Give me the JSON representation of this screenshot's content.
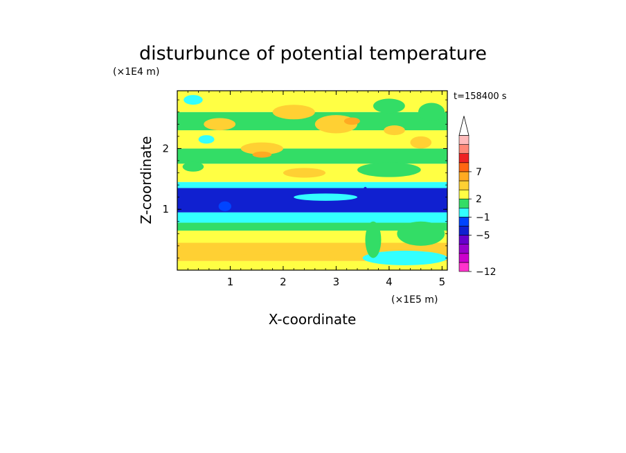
{
  "chart_data": {
    "type": "heatmap",
    "title": "disturbunce of potential temperature",
    "time_label": "t=158400 s",
    "xlabel": "X-coordinate",
    "ylabel": "Z-coordinate",
    "x_unit": "(×1E5 m)",
    "y_unit": "(×1E4 m)",
    "xlim": [
      0,
      5.1
    ],
    "ylim": [
      0,
      2.95
    ],
    "x_ticks": [
      1,
      2,
      3,
      4,
      5
    ],
    "y_ticks": [
      1,
      2
    ],
    "colorbar": {
      "colors": [
        "#ff33cc",
        "#cc00cc",
        "#9900cc",
        "#6600cc",
        "#1020d0",
        "#0044ff",
        "#33ffff",
        "#33dd66",
        "#ffff44",
        "#ffd033",
        "#ffaa22",
        "#ff6611",
        "#ee2222",
        "#ff8877",
        "#ffbbbb"
      ],
      "tick_labels": [
        {
          "label": "-12",
          "boundary": 0
        },
        {
          "label": "-5",
          "boundary": 4
        },
        {
          "label": "-1",
          "boundary": 6
        },
        {
          "label": "2",
          "boundary": 8
        },
        {
          "label": "7",
          "boundary": 11
        }
      ],
      "extend_top": true
    },
    "bands": [
      {
        "z0": 0.0,
        "z1": 0.15,
        "color": "#ffff44"
      },
      {
        "z0": 0.15,
        "z1": 0.45,
        "color": "#ffd033"
      },
      {
        "z0": 0.45,
        "z1": 0.65,
        "color": "#ffff44"
      },
      {
        "z0": 0.65,
        "z1": 0.78,
        "color": "#33dd66"
      },
      {
        "z0": 0.78,
        "z1": 0.95,
        "color": "#33ffff"
      },
      {
        "z0": 0.95,
        "z1": 1.35,
        "color": "#1020d0"
      },
      {
        "z0": 1.35,
        "z1": 1.45,
        "color": "#33ffff"
      },
      {
        "z0": 1.45,
        "z1": 1.75,
        "color": "#ffff44"
      },
      {
        "z0": 1.75,
        "z1": 2.0,
        "color": "#33dd66"
      },
      {
        "z0": 2.0,
        "z1": 2.3,
        "color": "#ffff44"
      },
      {
        "z0": 2.3,
        "z1": 2.6,
        "color": "#33dd66"
      },
      {
        "z0": 2.6,
        "z1": 2.95,
        "color": "#ffff44"
      }
    ],
    "patches": [
      {
        "x": 0.5,
        "z": 0.3,
        "rx": 0.45,
        "rz": 0.12,
        "color": "#ffd033"
      },
      {
        "x": 1.4,
        "z": 0.35,
        "rx": 0.6,
        "rz": 0.1,
        "color": "#ffd033"
      },
      {
        "x": 3.2,
        "z": 0.25,
        "rx": 0.35,
        "rz": 0.08,
        "color": "#ffd033"
      },
      {
        "x": 4.3,
        "z": 0.2,
        "rx": 0.8,
        "rz": 0.12,
        "color": "#33ffff"
      },
      {
        "x": 3.7,
        "z": 0.5,
        "rx": 0.15,
        "rz": 0.3,
        "color": "#33dd66"
      },
      {
        "x": 4.6,
        "z": 0.6,
        "rx": 0.45,
        "rz": 0.2,
        "color": "#33dd66"
      },
      {
        "x": 2.8,
        "z": 1.2,
        "rx": 0.6,
        "rz": 0.06,
        "color": "#33ffff"
      },
      {
        "x": 3.55,
        "z": 1.22,
        "rx": 0.06,
        "rz": 0.15,
        "color": "#1020d0"
      },
      {
        "x": 0.9,
        "z": 1.05,
        "rx": 0.12,
        "rz": 0.08,
        "color": "#0044ff"
      },
      {
        "x": 1.6,
        "z": 2.0,
        "rx": 0.4,
        "rz": 0.1,
        "color": "#ffd033"
      },
      {
        "x": 1.6,
        "z": 1.9,
        "rx": 0.18,
        "rz": 0.05,
        "color": "#ffaa22"
      },
      {
        "x": 0.3,
        "z": 1.7,
        "rx": 0.2,
        "rz": 0.08,
        "color": "#33dd66"
      },
      {
        "x": 0.8,
        "z": 2.4,
        "rx": 0.3,
        "rz": 0.1,
        "color": "#ffd033"
      },
      {
        "x": 2.2,
        "z": 2.6,
        "rx": 0.4,
        "rz": 0.12,
        "color": "#ffd033"
      },
      {
        "x": 3.0,
        "z": 2.4,
        "rx": 0.4,
        "rz": 0.15,
        "color": "#ffd033"
      },
      {
        "x": 3.3,
        "z": 2.45,
        "rx": 0.15,
        "rz": 0.06,
        "color": "#ffaa22"
      },
      {
        "x": 4.0,
        "z": 2.7,
        "rx": 0.3,
        "rz": 0.12,
        "color": "#33dd66"
      },
      {
        "x": 4.8,
        "z": 2.6,
        "rx": 0.25,
        "rz": 0.15,
        "color": "#33dd66"
      },
      {
        "x": 0.3,
        "z": 2.8,
        "rx": 0.18,
        "rz": 0.08,
        "color": "#33ffff"
      },
      {
        "x": 4.0,
        "z": 1.65,
        "rx": 0.6,
        "rz": 0.12,
        "color": "#33dd66"
      },
      {
        "x": 2.4,
        "z": 1.6,
        "rx": 0.4,
        "rz": 0.08,
        "color": "#ffd033"
      },
      {
        "x": 4.6,
        "z": 2.1,
        "rx": 0.2,
        "rz": 0.1,
        "color": "#ffd033"
      },
      {
        "x": 0.55,
        "z": 2.15,
        "rx": 0.15,
        "rz": 0.07,
        "color": "#33ffff"
      },
      {
        "x": 4.1,
        "z": 2.3,
        "rx": 0.2,
        "rz": 0.08,
        "color": "#ffd033"
      },
      {
        "x": 4.9,
        "z": 1.3,
        "rx": 0.2,
        "rz": 0.05,
        "color": "#1020d0"
      }
    ]
  }
}
